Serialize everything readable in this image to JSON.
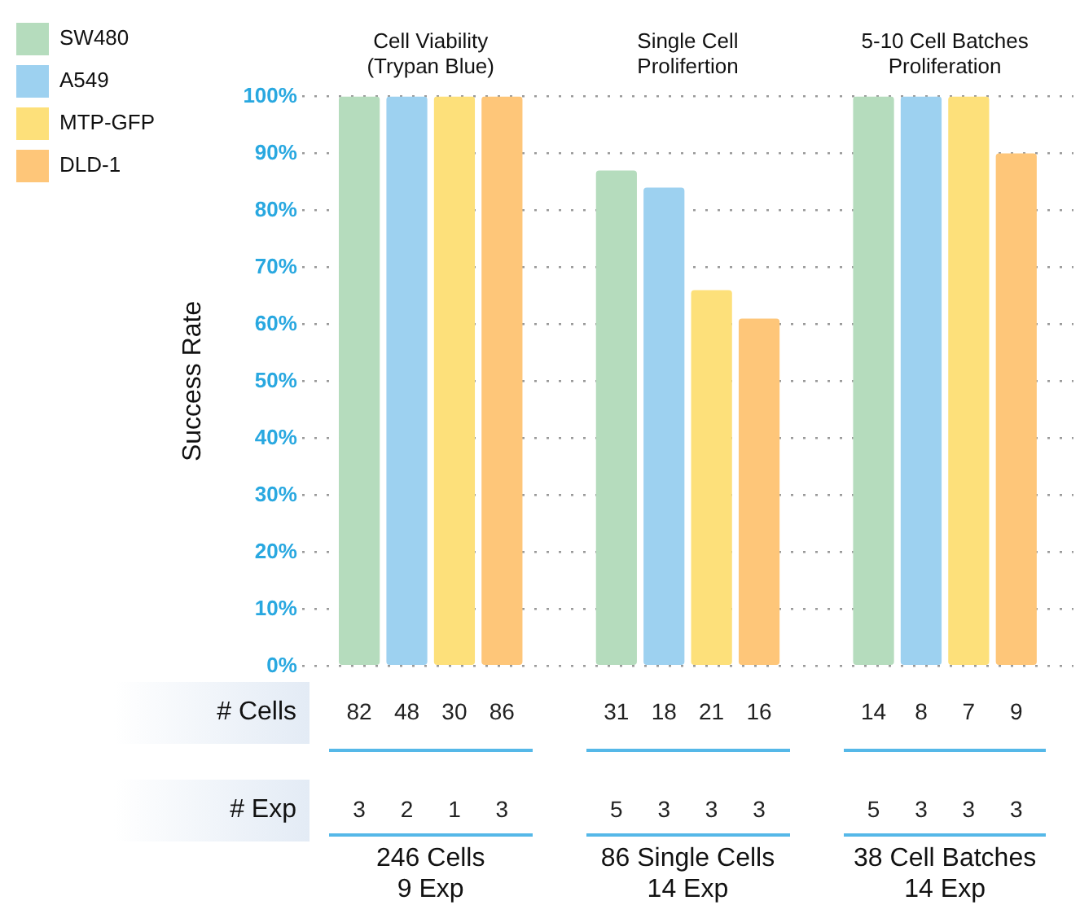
{
  "chart_data": {
    "type": "bar",
    "ylabel": "Success Rate",
    "categories": [
      "Cell Viability\n(Trypan Blue)",
      "Single Cell\nProlifertion",
      "5-10 Cell Batches\nProliferation"
    ],
    "series": [
      {
        "name": "SW480",
        "color": "#b5dcbd",
        "values": [
          100,
          87,
          100
        ]
      },
      {
        "name": "A549",
        "color": "#9dd1f0",
        "values": [
          100,
          84,
          100
        ]
      },
      {
        "name": "MTP-GFP",
        "color": "#fde07a",
        "values": [
          100,
          66,
          100
        ]
      },
      {
        "name": "DLD-1",
        "color": "#fec679",
        "values": [
          100,
          61,
          90
        ]
      }
    ],
    "ylim": [
      0,
      100
    ],
    "yticks": [
      {
        "value": 0,
        "label": "0%"
      },
      {
        "value": 10,
        "label": "10%"
      },
      {
        "value": 20,
        "label": "20%"
      },
      {
        "value": 30,
        "label": "30%"
      },
      {
        "value": 40,
        "label": "40%"
      },
      {
        "value": 50,
        "label": "50%"
      },
      {
        "value": 60,
        "label": "60%"
      },
      {
        "value": 70,
        "label": "70%"
      },
      {
        "value": 80,
        "label": "80%"
      },
      {
        "value": 90,
        "label": "90%"
      },
      {
        "value": 100,
        "label": "100%"
      }
    ],
    "grid": "y",
    "legend": "top left",
    "annotations": [
      "# Cells",
      "# Exp",
      "82",
      "48",
      "30",
      "86",
      "31",
      "18",
      "21",
      "16",
      "14",
      "8",
      "7",
      "9",
      "3",
      "2",
      "1",
      "3",
      "5",
      "3",
      "3",
      "3",
      "5",
      "3",
      "3",
      "3",
      "246 Cells\n9 Exp",
      "86 Single Cells\n14 Exp",
      "38 Cell Batches\n14 Exp"
    ]
  }
}
